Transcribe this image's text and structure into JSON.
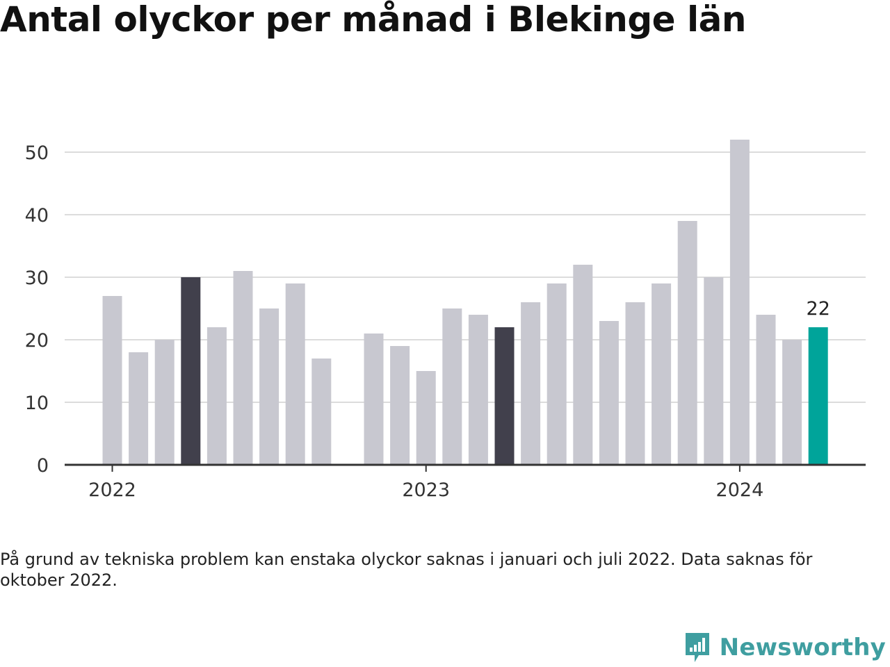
{
  "title": "Antal olyckor per månad i Blekinge län",
  "note": "På grund av tekniska problem kan enstaka olyckor saknas i januari och juli 2022. Data saknas för oktober 2022.",
  "brand": {
    "name": "Newsworthy"
  },
  "colors": {
    "default_bar": "#c8c8d0",
    "highlight_bar": "#41404c",
    "latest_bar": "#00a49a",
    "brand": "#3f9ea0",
    "grid": "#dcdcdc",
    "axis": "#333333"
  },
  "chart_data": {
    "type": "bar",
    "categories": [
      "2022-01",
      "2022-02",
      "2022-03",
      "2022-04",
      "2022-05",
      "2022-06",
      "2022-07",
      "2022-08",
      "2022-09",
      "2022-10",
      "2022-11",
      "2022-12",
      "2023-01",
      "2023-02",
      "2023-03",
      "2023-04",
      "2023-05",
      "2023-06",
      "2023-07",
      "2023-08",
      "2023-09",
      "2023-10",
      "2023-11",
      "2023-12",
      "2024-01",
      "2024-02",
      "2024-03",
      "2024-04"
    ],
    "values": [
      27,
      18,
      20,
      30,
      22,
      31,
      25,
      29,
      17,
      null,
      21,
      19,
      15,
      25,
      24,
      22,
      26,
      29,
      32,
      23,
      26,
      29,
      39,
      30,
      52,
      24,
      20,
      22
    ],
    "highlighted": [
      "2022-04",
      "2023-04"
    ],
    "latest": "2024-04",
    "data_labels": [
      {
        "category": "2024-04",
        "text": "22"
      }
    ],
    "y_ticks": [
      0,
      10,
      20,
      30,
      40,
      50
    ],
    "x_ticks": [
      {
        "category": "2022-01",
        "label": "2022"
      },
      {
        "category": "2023-01",
        "label": "2023"
      },
      {
        "category": "2024-01",
        "label": "2024"
      }
    ],
    "ylim": [
      0,
      54
    ],
    "grid": true,
    "legend": "none",
    "title": "Antal olyckor per månad i Blekinge län",
    "xlabel": "",
    "ylabel": ""
  }
}
